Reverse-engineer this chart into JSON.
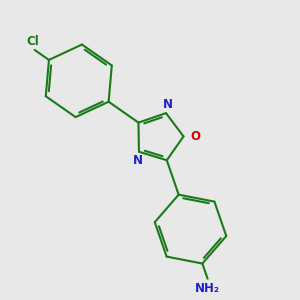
{
  "background_color": "#e8e8e8",
  "bond_color": "#1a7a1a",
  "n_color": "#2020cc",
  "o_color": "#cc0000",
  "cl_color": "#1a7a1a",
  "nh2_color": "#2020cc",
  "line_width": 1.5,
  "figsize": [
    3.0,
    3.0
  ],
  "dpi": 100,
  "xlim": [
    0,
    10
  ],
  "ylim": [
    0,
    10
  ]
}
